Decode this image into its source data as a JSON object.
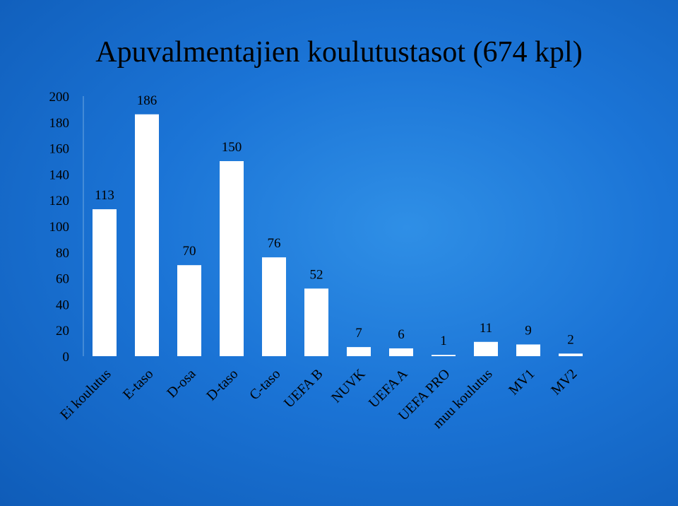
{
  "chart_data": {
    "type": "bar",
    "title": "Apuvalmentajien koulutustasot (674 kpl)",
    "xlabel": "",
    "ylabel": "",
    "ylim": [
      0,
      200
    ],
    "yticks": [
      0,
      20,
      40,
      60,
      80,
      100,
      120,
      140,
      160,
      180,
      200
    ],
    "grid": false,
    "legend": "none",
    "bar_color": "#ffffff",
    "categories": [
      "Ei koulutus",
      "E-taso",
      "D-osa",
      "D-taso",
      "C-taso",
      "UEFA B",
      "NUVK",
      "UEFA A",
      "UEFA PRO",
      "muu koulutus",
      "MV1",
      "MV2"
    ],
    "values": [
      113,
      186,
      70,
      150,
      76,
      52,
      7,
      6,
      1,
      11,
      9,
      2
    ]
  }
}
